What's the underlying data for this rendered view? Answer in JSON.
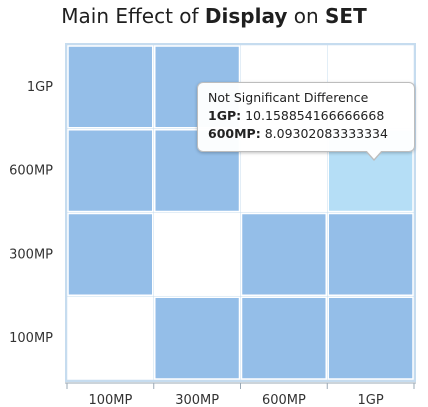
{
  "chart_data": {
    "type": "heatmap",
    "title_prefix": "Main Effect of",
    "title_factor": "Display",
    "title_mid": "on",
    "title_measure": "SET",
    "x_categories": [
      "100MP",
      "300MP",
      "600MP",
      "1GP"
    ],
    "y_categories": [
      "1GP",
      "600MP",
      "300MP",
      "100MP"
    ],
    "cells": [
      [
        1,
        1,
        0,
        0
      ],
      [
        1,
        1,
        0,
        2
      ],
      [
        1,
        0,
        1,
        1
      ],
      [
        0,
        1,
        1,
        1
      ]
    ],
    "colors": {
      "significant": "#94bee8",
      "empty": "#ffffff",
      "highlight": "#b5def6",
      "grid": "#ffffff",
      "frame": "#c6dcef",
      "axis": "#9aa9b6"
    },
    "tooltip": {
      "title": "Not Significant Difference",
      "line1_label": "1GP:",
      "line1_value": "10.158854166666668",
      "line2_label": "600MP:",
      "line2_value": "8.09302083333334"
    }
  }
}
